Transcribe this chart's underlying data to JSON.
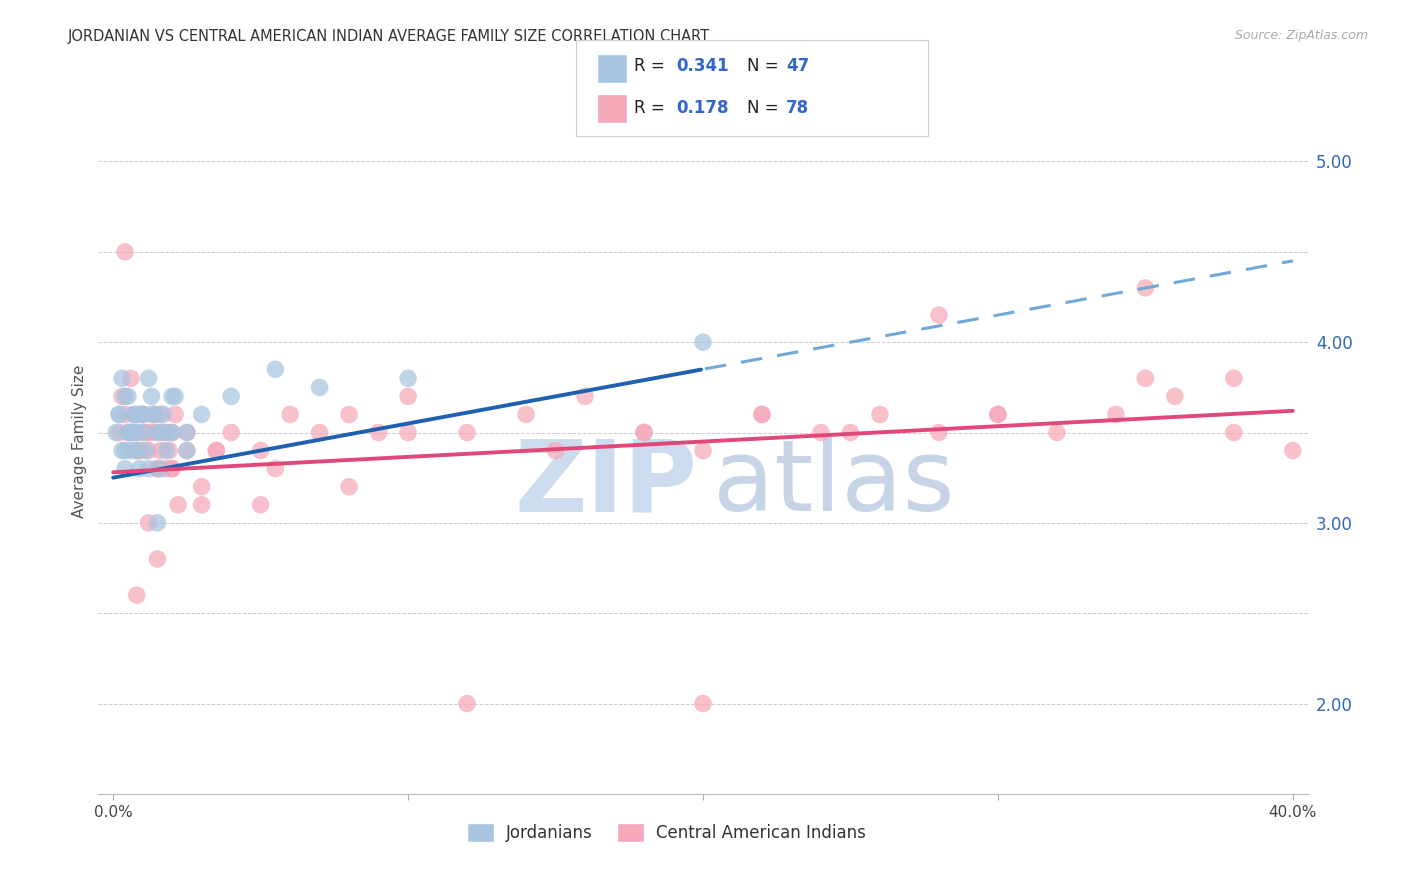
{
  "title": "JORDANIAN VS CENTRAL AMERICAN INDIAN AVERAGE FAMILY SIZE CORRELATION CHART",
  "source": "Source: ZipAtlas.com",
  "ylabel": "Average Family Size",
  "blue_color": "#A8C4E0",
  "pink_color": "#F4A8B8",
  "trendline_blue_solid": "#2060B0",
  "trendline_blue_dash": "#70A8D8",
  "trendline_pink": "#E04878",
  "r_blue": 0.341,
  "n_blue": 47,
  "r_pink": 0.178,
  "n_pink": 78,
  "xmin": 0.0,
  "xmax": 40.0,
  "ymin": 1.5,
  "ymax": 5.4,
  "yticks": [
    2.0,
    3.0,
    4.0,
    5.0
  ],
  "xticks": [
    0,
    10,
    20,
    30,
    40
  ],
  "xtick_labels_show": [
    "0.0%",
    "",
    "",
    "",
    "40.0%"
  ],
  "legend_label_blue": "Jordanians",
  "legend_label_pink": "Central American Indians",
  "jordanians_x": [
    0.1,
    0.2,
    0.3,
    0.4,
    0.5,
    0.6,
    0.7,
    0.8,
    0.9,
    1.0,
    0.3,
    0.5,
    0.7,
    0.9,
    1.1,
    1.3,
    1.5,
    1.7,
    1.9,
    2.1,
    0.4,
    0.6,
    0.8,
    1.0,
    1.2,
    1.4,
    1.6,
    1.8,
    2.0,
    2.5,
    0.2,
    0.4,
    0.6,
    0.8,
    1.0,
    1.5,
    2.0,
    2.5,
    3.0,
    4.0,
    1.2,
    1.4,
    1.6,
    5.5,
    7.0,
    10.0,
    20.0
  ],
  "jordanians_y": [
    3.5,
    3.6,
    3.4,
    3.7,
    3.5,
    3.4,
    3.6,
    3.5,
    3.3,
    3.6,
    3.8,
    3.7,
    3.5,
    3.6,
    3.4,
    3.7,
    3.5,
    3.6,
    3.5,
    3.7,
    3.4,
    3.5,
    3.6,
    3.5,
    3.3,
    3.6,
    3.5,
    3.4,
    3.7,
    3.5,
    3.6,
    3.3,
    3.5,
    3.4,
    3.6,
    3.0,
    3.5,
    3.4,
    3.6,
    3.7,
    3.8,
    3.6,
    3.3,
    3.85,
    3.75,
    3.8,
    4.0
  ],
  "central_american_x": [
    0.2,
    0.4,
    0.6,
    0.8,
    1.0,
    1.2,
    1.4,
    1.6,
    1.8,
    2.0,
    0.3,
    0.5,
    0.7,
    0.9,
    1.1,
    1.3,
    1.5,
    1.7,
    1.9,
    2.1,
    0.4,
    0.6,
    0.8,
    1.0,
    1.2,
    1.4,
    1.6,
    1.8,
    2.0,
    2.5,
    2.0,
    2.5,
    3.0,
    3.5,
    4.0,
    5.0,
    6.0,
    7.0,
    8.0,
    9.0,
    10.0,
    12.0,
    14.0,
    16.0,
    18.0,
    20.0,
    22.0,
    24.0,
    26.0,
    28.0,
    30.0,
    32.0,
    34.0,
    36.0,
    38.0,
    40.0,
    1.5,
    3.5,
    5.5,
    8.0,
    10.0,
    15.0,
    18.0,
    22.0,
    25.0,
    30.0,
    35.0,
    38.0,
    0.8,
    1.2,
    1.5,
    2.2,
    3.0,
    5.0,
    12.0,
    20.0,
    28.0,
    35.0
  ],
  "central_american_y": [
    3.5,
    3.6,
    3.5,
    3.4,
    3.6,
    3.5,
    3.6,
    3.4,
    3.5,
    3.3,
    3.7,
    3.5,
    3.6,
    3.4,
    3.5,
    3.6,
    3.3,
    3.5,
    3.4,
    3.6,
    4.5,
    3.8,
    3.5,
    3.6,
    3.4,
    3.5,
    3.6,
    3.3,
    3.5,
    3.4,
    3.3,
    3.5,
    3.2,
    3.4,
    3.5,
    3.4,
    3.6,
    3.5,
    3.6,
    3.5,
    3.7,
    3.5,
    3.6,
    3.7,
    3.5,
    3.4,
    3.6,
    3.5,
    3.6,
    3.5,
    3.6,
    3.5,
    3.6,
    3.7,
    3.8,
    3.4,
    3.3,
    3.4,
    3.3,
    3.2,
    3.5,
    3.4,
    3.5,
    3.6,
    3.5,
    3.6,
    3.8,
    3.5,
    2.6,
    3.0,
    2.8,
    3.1,
    3.1,
    3.1,
    2.0,
    2.0,
    4.15,
    4.3
  ]
}
